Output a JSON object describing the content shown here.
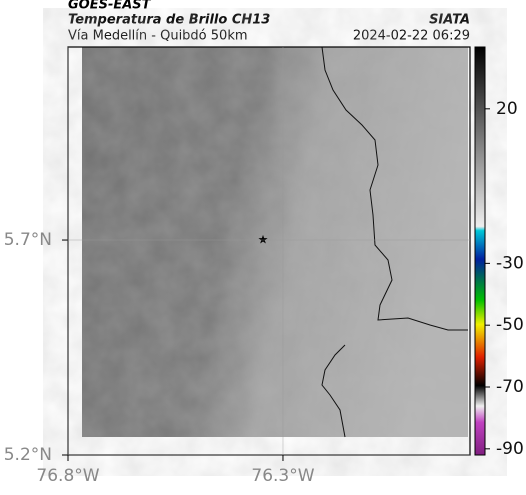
{
  "header": {
    "source": "GOES-EAST",
    "title": "Temperatura de Brillo CH13",
    "subtitle": "Vía Medellín - Quibdó 50km",
    "agency": "SIATA",
    "datetime": "2024-02-22 06:29"
  },
  "map": {
    "lon_range": [
      -76.8,
      -75.865
    ],
    "lat_range": [
      5.2,
      6.149
    ],
    "lat_ticks": [
      {
        "value": 5.7,
        "label": "5.7°N"
      },
      {
        "value": 5.2,
        "label": "5.2°N"
      }
    ],
    "lon_ticks": [
      {
        "value": -76.8,
        "label": "76.8°W"
      },
      {
        "value": -76.3,
        "label": "76.3°W"
      }
    ]
  },
  "colorbar": {
    "range": [
      -92,
      40
    ],
    "ticks": [
      20,
      -30,
      -50,
      -70,
      -90
    ]
  }
}
